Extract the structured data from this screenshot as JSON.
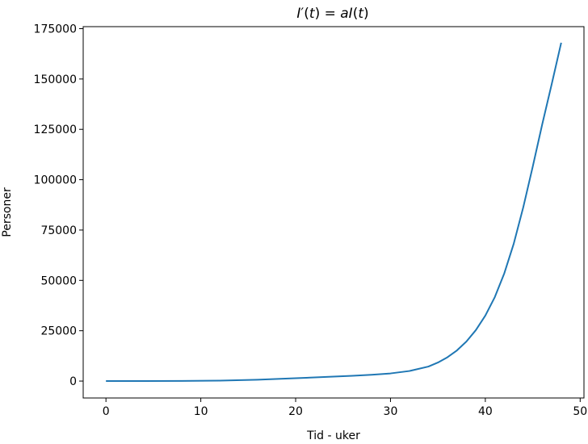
{
  "chart_data": {
    "type": "line",
    "title_parts": {
      "lhs_func": "I",
      "prime": "′",
      "open": "(",
      "var": "t",
      "close_eq": ") = ",
      "coef": "a",
      "rhs_func": "I",
      "close": ")"
    },
    "xlabel": "Tid - uker",
    "ylabel": "Personer",
    "xlim": [
      -2.4,
      50.4
    ],
    "ylim": [
      -8400,
      176000
    ],
    "x_ticks": [
      0,
      10,
      20,
      30,
      40,
      50
    ],
    "x_tick_labels": [
      "0",
      "10",
      "20",
      "30",
      "40",
      "50"
    ],
    "y_ticks": [
      0,
      25000,
      50000,
      75000,
      100000,
      125000,
      150000,
      175000
    ],
    "y_tick_labels": [
      "0",
      "25000",
      "50000",
      "75000",
      "100000",
      "125000",
      "150000",
      "175000"
    ],
    "grid": false,
    "series": [
      {
        "color": "#1f77b4",
        "x": [
          0,
          4,
          8,
          12,
          16,
          20,
          24,
          26,
          28,
          30,
          32,
          34,
          35,
          36,
          37,
          38,
          39,
          40,
          41,
          42,
          43,
          44,
          45,
          46,
          47,
          48
        ],
        "y": [
          10,
          30,
          85,
          240,
          680,
          1400,
          2200,
          2600,
          3100,
          3800,
          5000,
          7200,
          9200,
          11800,
          15200,
          19600,
          25300,
          32500,
          41700,
          53500,
          68300,
          86300,
          106500,
          127500,
          147500,
          168000
        ]
      }
    ]
  }
}
